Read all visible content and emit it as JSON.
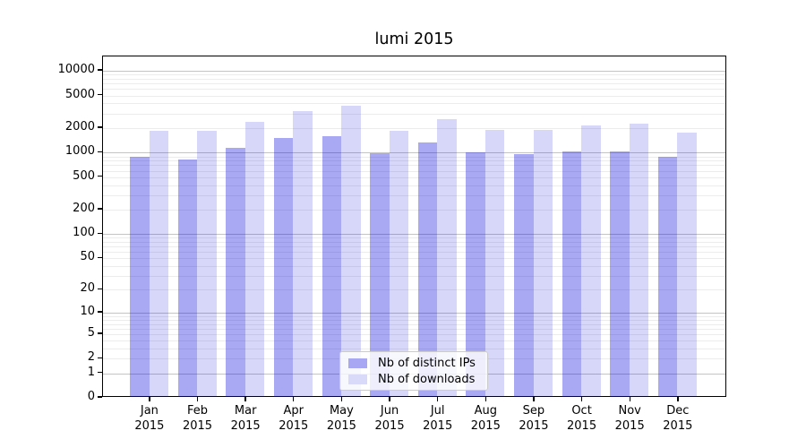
{
  "title": "lumi 2015",
  "legend": {
    "items": [
      {
        "label": "Nb of distinct IPs",
        "series": "distinct_ips"
      },
      {
        "label": "Nb of downloads",
        "series": "downloads"
      }
    ]
  },
  "colors": {
    "bar_base_rgb": "0,0,220",
    "distinct_ips_alpha": 0.34,
    "downloads_alpha": 0.155,
    "legend_swatch_distinct_ips": "#a7a7f3",
    "legend_swatch_downloads": "#d9d9fa",
    "grid_major": "#c4c4c4",
    "grid_minor": "#ececec",
    "axis": "#000000",
    "text": "#000000",
    "background": "#ffffff"
  },
  "chart_data": {
    "type": "bar",
    "title": "lumi 2015",
    "categories": [
      "Jan",
      "Feb",
      "Mar",
      "Apr",
      "May",
      "Jun",
      "Jul",
      "Aug",
      "Sep",
      "Oct",
      "Nov",
      "Dec"
    ],
    "category_year": "2015",
    "series": [
      {
        "name": "Nb of distinct IPs",
        "values": [
          850,
          800,
          1100,
          1450,
          1550,
          950,
          1300,
          980,
          930,
          1000,
          1010,
          860
        ]
      },
      {
        "name": "Nb of downloads",
        "values": [
          1770,
          1790,
          2300,
          3150,
          3660,
          1770,
          2500,
          1810,
          1820,
          2100,
          2170,
          1700
        ]
      }
    ],
    "yscale": "log1p",
    "ylim": [
      0,
      15000
    ],
    "yticks": [
      0,
      1,
      2,
      5,
      10,
      20,
      50,
      100,
      200,
      500,
      1000,
      2000,
      5000,
      10000
    ],
    "grid_major_at": [
      1,
      10,
      100,
      1000,
      10000
    ],
    "grid": true,
    "legend_position": "lower center",
    "xlabel": "",
    "ylabel": ""
  }
}
